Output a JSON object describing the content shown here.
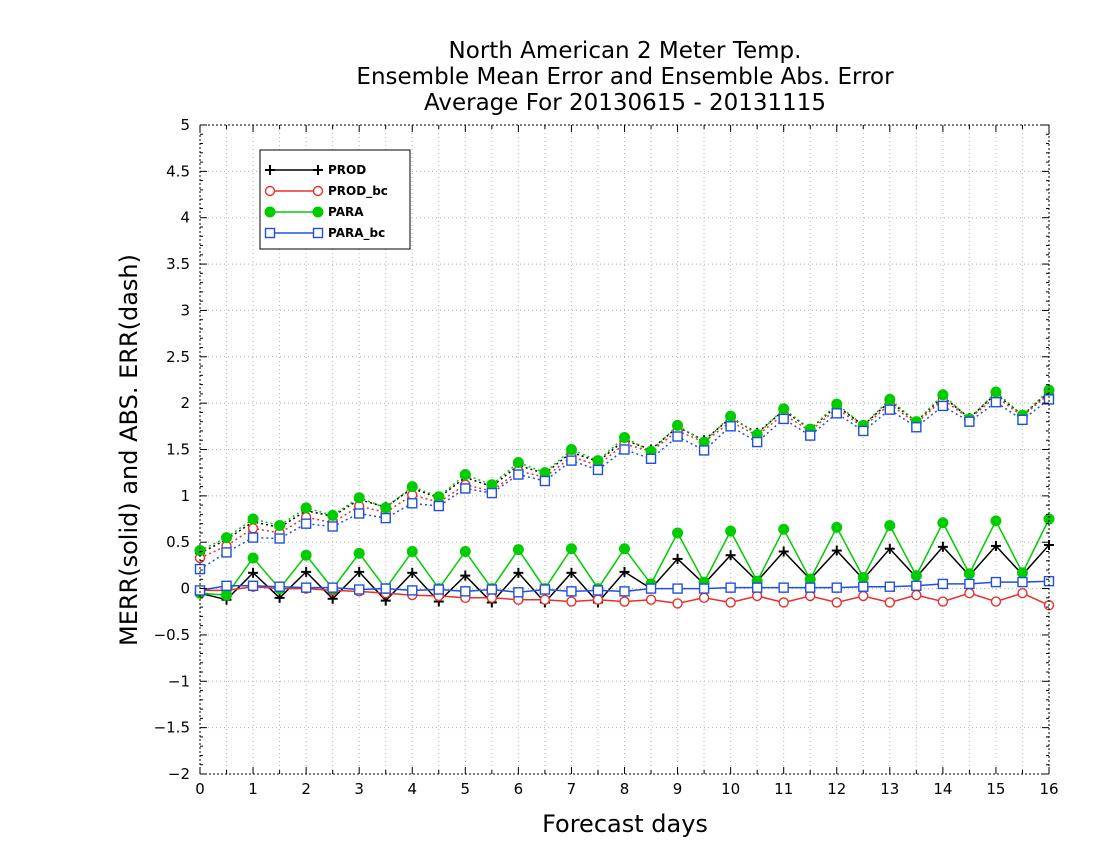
{
  "chart_data": {
    "type": "line",
    "title_lines": [
      "North American 2 Meter Temp.",
      "Ensemble Mean Error and Ensemble Abs. Error",
      "Average For 20130615 - 20131115"
    ],
    "xlabel": "Forecast days",
    "ylabel": "MERR(solid) and ABS. ERR(dash)",
    "xlim": [
      0,
      16
    ],
    "ylim": [
      -2,
      5
    ],
    "xticks": [
      "0",
      "1",
      "2",
      "3",
      "4",
      "5",
      "6",
      "7",
      "8",
      "9",
      "10",
      "11",
      "12",
      "13",
      "14",
      "15",
      "16"
    ],
    "yticks": [
      "-2",
      "-1.5",
      "-1",
      "-0.5",
      "0",
      "0.5",
      "1",
      "1.5",
      "2",
      "2.5",
      "3",
      "3.5",
      "4",
      "4.5",
      "5"
    ],
    "grid": true,
    "legend_position": "top-left",
    "x": [
      0,
      0.5,
      1,
      1.5,
      2,
      2.5,
      3,
      3.5,
      4,
      4.5,
      5,
      5.5,
      6,
      6.5,
      7,
      7.5,
      8,
      8.5,
      9,
      9.5,
      10,
      10.5,
      11,
      11.5,
      12,
      12.5,
      13,
      13.5,
      14,
      14.5,
      15,
      15.5,
      16
    ],
    "series": [
      {
        "name": "PROD",
        "color": "#000000",
        "marker": "plus",
        "merr": [
          -0.05,
          -0.12,
          0.17,
          -0.1,
          0.18,
          -0.11,
          0.18,
          -0.13,
          0.17,
          -0.14,
          0.14,
          -0.15,
          0.17,
          -0.15,
          0.17,
          -0.15,
          0.18,
          0.0,
          0.32,
          0.05,
          0.36,
          0.08,
          0.4,
          0.1,
          0.41,
          0.1,
          0.43,
          0.12,
          0.45,
          0.14,
          0.46,
          0.15,
          0.47
        ],
        "abserr": [
          0.38,
          0.53,
          0.72,
          0.66,
          0.84,
          0.78,
          0.96,
          0.88,
          1.08,
          0.98,
          1.2,
          1.1,
          1.33,
          1.24,
          1.47,
          1.37,
          1.6,
          1.5,
          1.74,
          1.6,
          1.84,
          1.68,
          1.92,
          1.72,
          1.97,
          1.76,
          2.02,
          1.8,
          2.07,
          1.84,
          2.1,
          1.87,
          2.12
        ]
      },
      {
        "name": "PROD_bc",
        "color": "#e8302a",
        "marker": "circle",
        "merr": [
          -0.02,
          -0.02,
          0.02,
          0.0,
          0.0,
          -0.02,
          -0.03,
          -0.05,
          -0.07,
          -0.08,
          -0.1,
          -0.1,
          -0.12,
          -0.12,
          -0.14,
          -0.12,
          -0.14,
          -0.12,
          -0.16,
          -0.1,
          -0.15,
          -0.08,
          -0.15,
          -0.08,
          -0.15,
          -0.08,
          -0.15,
          -0.07,
          -0.14,
          -0.05,
          -0.14,
          -0.05,
          -0.18
        ],
        "abserr": [
          0.33,
          0.46,
          0.65,
          0.6,
          0.77,
          0.71,
          0.89,
          0.82,
          1.01,
          0.93,
          1.12,
          1.05,
          1.27,
          1.2,
          1.42,
          1.33,
          1.56,
          1.48,
          1.7,
          1.58,
          1.8,
          1.65,
          1.88,
          1.7,
          1.94,
          1.74,
          1.99,
          1.78,
          2.04,
          1.83,
          2.07,
          1.86,
          2.1
        ]
      },
      {
        "name": "PARA",
        "color": "#00cc00",
        "marker": "filled-circle",
        "merr": [
          -0.05,
          -0.07,
          0.33,
          0.0,
          0.36,
          0.0,
          0.38,
          0.0,
          0.4,
          0.0,
          0.4,
          0.0,
          0.42,
          0.0,
          0.43,
          0.0,
          0.43,
          0.05,
          0.6,
          0.07,
          0.62,
          0.08,
          0.64,
          0.1,
          0.66,
          0.12,
          0.68,
          0.14,
          0.71,
          0.16,
          0.73,
          0.17,
          0.75
        ],
        "abserr": [
          0.41,
          0.55,
          0.75,
          0.68,
          0.87,
          0.79,
          0.98,
          0.87,
          1.1,
          0.99,
          1.23,
          1.12,
          1.36,
          1.25,
          1.5,
          1.38,
          1.63,
          1.48,
          1.76,
          1.58,
          1.86,
          1.66,
          1.94,
          1.72,
          1.99,
          1.76,
          2.04,
          1.8,
          2.09,
          1.83,
          2.12,
          1.87,
          2.14
        ]
      },
      {
        "name": "PARA_bc",
        "color": "#2050e0",
        "marker": "square",
        "merr": [
          -0.02,
          0.03,
          0.03,
          0.02,
          0.01,
          0.01,
          -0.01,
          0.0,
          -0.02,
          -0.01,
          -0.03,
          -0.01,
          -0.04,
          -0.01,
          -0.03,
          -0.02,
          -0.03,
          0.0,
          0.0,
          0.0,
          0.01,
          0.01,
          0.01,
          0.01,
          0.01,
          0.02,
          0.02,
          0.03,
          0.05,
          0.05,
          0.07,
          0.07,
          0.08
        ],
        "abserr": [
          0.21,
          0.39,
          0.55,
          0.54,
          0.7,
          0.67,
          0.81,
          0.76,
          0.92,
          0.89,
          1.08,
          1.03,
          1.23,
          1.16,
          1.38,
          1.28,
          1.5,
          1.4,
          1.64,
          1.49,
          1.75,
          1.58,
          1.83,
          1.65,
          1.89,
          1.7,
          1.93,
          1.74,
          1.97,
          1.8,
          2.01,
          1.82,
          2.04
        ]
      }
    ]
  }
}
